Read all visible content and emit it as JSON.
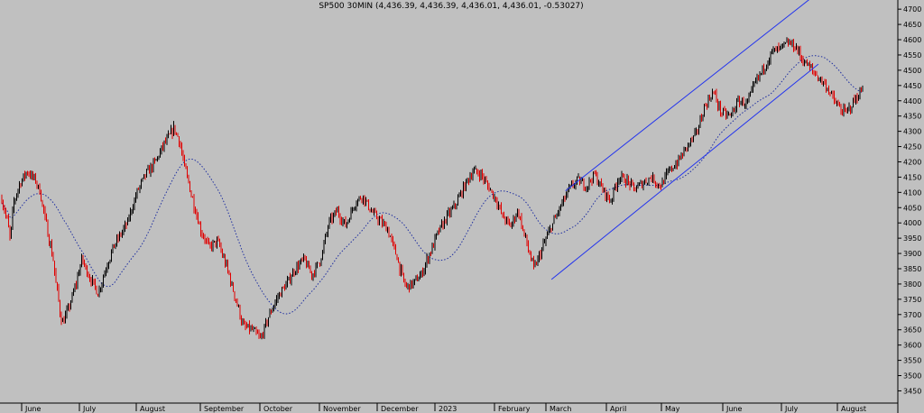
{
  "chart_data": {
    "type": "candlestick",
    "title": "SP500 30MIN (4,436.39, 4,436.39, 4,436.01, 4,436.01, -0.53027)",
    "ylim": [
      3410,
      4730
    ],
    "y_ticks": [
      3450,
      3500,
      3550,
      3600,
      3650,
      3700,
      3750,
      3800,
      3850,
      3900,
      3950,
      4000,
      4050,
      4100,
      4150,
      4200,
      4250,
      4300,
      4350,
      4400,
      4450,
      4500,
      4550,
      4600,
      4650,
      4700
    ],
    "x_ticks": [
      "June",
      "July",
      "August",
      "September",
      "October",
      "November",
      "December",
      "2023",
      "February",
      "March",
      "April",
      "May",
      "June",
      "July",
      "August"
    ],
    "price_path": [
      [
        0,
        4080
      ],
      [
        0.3,
        4010
      ],
      [
        0.5,
        3950
      ],
      [
        0.7,
        4060
      ],
      [
        1.0,
        4120
      ],
      [
        1.5,
        4170
      ],
      [
        2.0,
        4140
      ],
      [
        2.3,
        4100
      ],
      [
        2.6,
        4010
      ],
      [
        3.0,
        3900
      ],
      [
        3.3,
        3780
      ],
      [
        3.6,
        3670
      ],
      [
        4.0,
        3720
      ],
      [
        4.4,
        3790
      ],
      [
        4.8,
        3880
      ],
      [
        5.3,
        3820
      ],
      [
        5.8,
        3770
      ],
      [
        6.3,
        3860
      ],
      [
        6.8,
        3930
      ],
      [
        7.5,
        4000
      ],
      [
        8.0,
        4100
      ],
      [
        8.5,
        4160
      ],
      [
        9.0,
        4200
      ],
      [
        9.5,
        4260
      ],
      [
        10.0,
        4310
      ],
      [
        10.3,
        4270
      ],
      [
        10.6,
        4180
      ],
      [
        11.0,
        4090
      ],
      [
        11.5,
        3980
      ],
      [
        12.0,
        3920
      ],
      [
        12.5,
        3940
      ],
      [
        13.0,
        3860
      ],
      [
        13.5,
        3760
      ],
      [
        14.0,
        3660
      ],
      [
        14.5,
        3650
      ],
      [
        15.0,
        3620
      ],
      [
        15.5,
        3700
      ],
      [
        16.0,
        3760
      ],
      [
        16.5,
        3800
      ],
      [
        17.0,
        3850
      ],
      [
        17.5,
        3880
      ],
      [
        18.0,
        3830
      ],
      [
        18.5,
        3880
      ],
      [
        19.0,
        4000
      ],
      [
        19.5,
        4040
      ],
      [
        20.0,
        3990
      ],
      [
        20.5,
        4060
      ],
      [
        21.0,
        4090
      ],
      [
        21.5,
        4040
      ],
      [
        22.0,
        4010
      ],
      [
        22.5,
        3980
      ],
      [
        23.0,
        3900
      ],
      [
        23.3,
        3840
      ],
      [
        23.6,
        3790
      ],
      [
        24.0,
        3800
      ],
      [
        24.5,
        3830
      ],
      [
        25.0,
        3900
      ],
      [
        25.5,
        3970
      ],
      [
        26.0,
        4020
      ],
      [
        26.5,
        4060
      ],
      [
        27.0,
        4120
      ],
      [
        27.5,
        4170
      ],
      [
        28.0,
        4160
      ],
      [
        28.5,
        4120
      ],
      [
        29.0,
        4080
      ],
      [
        29.5,
        4020
      ],
      [
        30.0,
        3990
      ],
      [
        30.5,
        4040
      ],
      [
        31.0,
        3950
      ],
      [
        31.5,
        3850
      ],
      [
        32.0,
        3920
      ],
      [
        32.5,
        3990
      ],
      [
        33.0,
        4050
      ],
      [
        33.5,
        4110
      ],
      [
        34.0,
        4140
      ],
      [
        34.5,
        4120
      ],
      [
        35.0,
        4160
      ],
      [
        35.5,
        4110
      ],
      [
        36.0,
        4070
      ],
      [
        36.5,
        4150
      ],
      [
        37.0,
        4140
      ],
      [
        37.5,
        4110
      ],
      [
        38.0,
        4130
      ],
      [
        38.5,
        4150
      ],
      [
        39.0,
        4120
      ],
      [
        39.5,
        4170
      ],
      [
        40.0,
        4200
      ],
      [
        40.5,
        4250
      ],
      [
        41.0,
        4290
      ],
      [
        41.5,
        4380
      ],
      [
        42.0,
        4430
      ],
      [
        42.5,
        4360
      ],
      [
        43.0,
        4350
      ],
      [
        43.5,
        4400
      ],
      [
        44.0,
        4390
      ],
      [
        44.5,
        4460
      ],
      [
        45.0,
        4510
      ],
      [
        45.5,
        4560
      ],
      [
        46.0,
        4570
      ],
      [
        46.5,
        4590
      ],
      [
        47.0,
        4575
      ],
      [
        47.3,
        4540
      ],
      [
        47.8,
        4510
      ],
      [
        48.3,
        4480
      ],
      [
        48.8,
        4450
      ],
      [
        49.3,
        4400
      ],
      [
        49.7,
        4370
      ],
      [
        50.0,
        4360
      ],
      [
        50.5,
        4400
      ],
      [
        51.0,
        4440
      ]
    ],
    "channel_lines": [
      {
        "from": [
          33.3,
          4105
        ],
        "to": [
          51.8,
          4755
        ]
      },
      {
        "from": [
          32.5,
          3815
        ],
        "to": [
          51.8,
          4520
        ]
      }
    ]
  }
}
